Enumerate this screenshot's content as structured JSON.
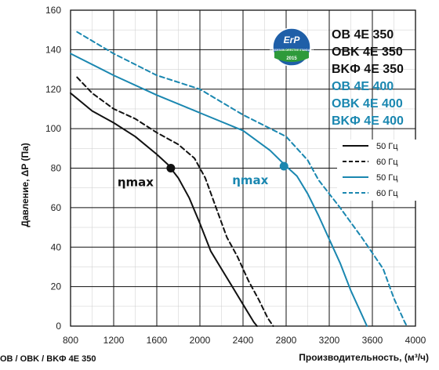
{
  "chart_data": {
    "type": "line",
    "xlabel": "Производительность, (м³/ч)",
    "ylabel": "Давление, ΔP (Па)",
    "xlim": [
      800,
      4000
    ],
    "ylim": [
      0,
      160
    ],
    "x_ticks": [
      800,
      1200,
      1600,
      2000,
      2400,
      2800,
      3200,
      3600,
      4000
    ],
    "y_ticks": [
      0,
      20,
      40,
      60,
      80,
      100,
      120,
      140,
      160
    ],
    "grid": true,
    "x_minor_step": 200,
    "y_minor_step": 10,
    "models_350": [
      "OB 4E 350",
      "OBK 4E 350",
      "BKФ 4E 350"
    ],
    "models_400": [
      "OB 4E 400",
      "OBK 4E 400",
      "BKФ 4E 400"
    ],
    "colors": {
      "c350": "#111111",
      "c400": "#1a87b0"
    },
    "series": [
      {
        "name": "50 Гц",
        "group": "350",
        "dashed": false,
        "points": [
          [
            800,
            118
          ],
          [
            1000,
            109
          ],
          [
            1200,
            103
          ],
          [
            1400,
            96
          ],
          [
            1600,
            87
          ],
          [
            1700,
            82
          ],
          [
            1800,
            75
          ],
          [
            1900,
            65
          ],
          [
            2000,
            52
          ],
          [
            2100,
            38
          ],
          [
            2200,
            29
          ],
          [
            2300,
            20
          ],
          [
            2400,
            11
          ],
          [
            2500,
            2
          ],
          [
            2530,
            0
          ]
        ]
      },
      {
        "name": "60 Гц",
        "group": "350",
        "dashed": false,
        "points": []
      },
      {
        "name": "60 Гц",
        "group": "350",
        "dashed": true,
        "points": [
          [
            860,
            126
          ],
          [
            1000,
            118
          ],
          [
            1200,
            110
          ],
          [
            1400,
            105
          ],
          [
            1600,
            98
          ],
          [
            1800,
            92
          ],
          [
            1950,
            85
          ],
          [
            2050,
            75
          ],
          [
            2150,
            60
          ],
          [
            2250,
            45
          ],
          [
            2350,
            35
          ],
          [
            2450,
            23
          ],
          [
            2550,
            13
          ],
          [
            2630,
            4
          ],
          [
            2680,
            0
          ]
        ]
      },
      {
        "name": "50 Гц",
        "group": "400",
        "dashed": false,
        "points": [
          [
            800,
            138
          ],
          [
            1200,
            127
          ],
          [
            1600,
            117
          ],
          [
            2000,
            108
          ],
          [
            2400,
            99
          ],
          [
            2650,
            89
          ],
          [
            2800,
            81
          ],
          [
            2900,
            76
          ],
          [
            3000,
            67
          ],
          [
            3100,
            56
          ],
          [
            3200,
            44
          ],
          [
            3300,
            32
          ],
          [
            3400,
            18
          ],
          [
            3500,
            6
          ],
          [
            3550,
            0
          ]
        ]
      },
      {
        "name": "60 Гц",
        "group": "400",
        "dashed": true,
        "points": [
          [
            860,
            149
          ],
          [
            1200,
            138
          ],
          [
            1600,
            127
          ],
          [
            2000,
            120
          ],
          [
            2400,
            107
          ],
          [
            2800,
            96
          ],
          [
            3000,
            84
          ],
          [
            3100,
            74
          ],
          [
            3300,
            60
          ],
          [
            3500,
            45
          ],
          [
            3700,
            29
          ],
          [
            3800,
            14
          ],
          [
            3900,
            2
          ],
          [
            3920,
            0
          ]
        ]
      }
    ],
    "eta_points": [
      {
        "label": "ηmax",
        "group": "350",
        "x": 1730,
        "y": 80
      },
      {
        "label": "ηmax",
        "group": "400",
        "x": 2780,
        "y": 81
      }
    ],
    "legend_entries": [
      {
        "label": "50 Гц",
        "group": "350",
        "dashed": false
      },
      {
        "label": "60 Гц",
        "group": "350",
        "dashed": true
      },
      {
        "label": "50 Гц",
        "group": "400",
        "dashed": false
      },
      {
        "label": "60 Гц",
        "group": "400",
        "dashed": true
      }
    ]
  },
  "badge": {
    "title": "ErP",
    "text": "ECODESIGN DIRECTIVE STANDARD",
    "year": "2015"
  },
  "caption": "OB / OBK / BKФ 4E 350"
}
